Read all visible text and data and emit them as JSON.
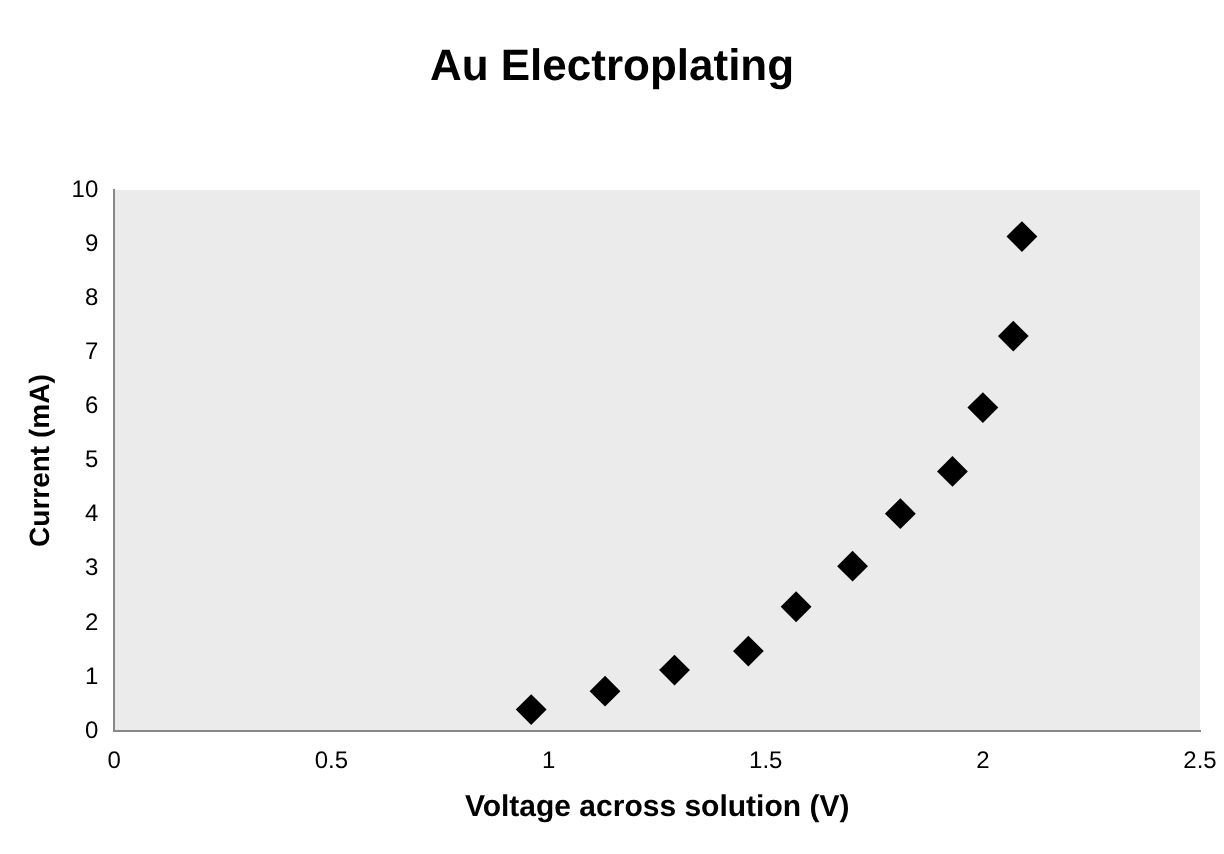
{
  "chart_data": {
    "type": "scatter",
    "title": "Au Electroplating",
    "xlabel": "Voltage across solution (V)",
    "ylabel": "Current (mA)",
    "x": [
      0.96,
      1.13,
      1.29,
      1.46,
      1.57,
      1.7,
      1.81,
      1.93,
      2.0,
      2.07,
      2.09
    ],
    "values": [
      0.4,
      0.74,
      1.13,
      1.48,
      2.3,
      3.05,
      4.02,
      4.8,
      5.98,
      7.3,
      9.14
    ],
    "color": "#000000",
    "marker": "diamond",
    "grid": false,
    "legend": false,
    "xlim": [
      0,
      2.5
    ],
    "xticks": [
      0,
      0.5,
      1,
      1.5,
      2,
      2.5
    ],
    "ylim": [
      0,
      10
    ],
    "yticks": [
      0,
      1,
      2,
      3,
      4,
      5,
      6,
      7,
      8,
      9,
      10
    ]
  }
}
